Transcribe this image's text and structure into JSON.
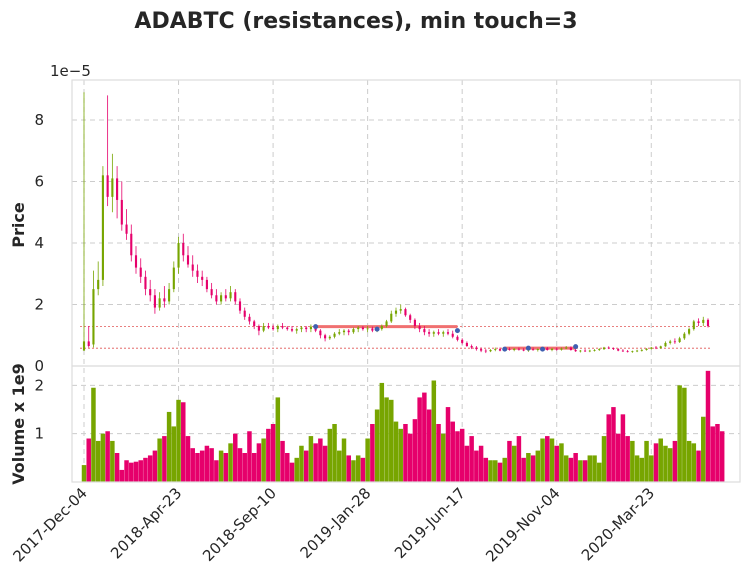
{
  "chart_data": {
    "type": "candlestick",
    "title": "ADABTC (resistances), min touch=3",
    "price_panel": {
      "ylabel": "Price",
      "offset_label": "1e−5",
      "ylim": [
        0,
        9.3
      ],
      "yticks": [
        0,
        2,
        4,
        6,
        8
      ]
    },
    "volume_panel": {
      "ylabel": "Volume x 1e9",
      "ylim": [
        0,
        2.4
      ],
      "yticks": [
        1,
        2
      ]
    },
    "x_tick_labels": [
      "2017-Dec-04",
      "2018-Apr-23",
      "2018-Sep-10",
      "2019-Jan-28",
      "2019-Jun-17",
      "2019-Nov-04",
      "2020-Mar-23"
    ],
    "x_tick_positions": [
      0,
      20,
      40,
      60,
      80,
      100,
      120
    ],
    "colors": {
      "up": "#77a500",
      "down": "#e6006b",
      "resistance": "#f07070",
      "touch": "#3f5fb0"
    },
    "resistance_levels": [
      {
        "value": 1.28,
        "segment": [
          49,
          79
        ]
      },
      {
        "value": 0.58,
        "segment": [
          89,
          104
        ]
      }
    ],
    "touch_points": [
      {
        "x": 49,
        "y": 1.28
      },
      {
        "x": 62,
        "y": 1.2
      },
      {
        "x": 79,
        "y": 1.15
      },
      {
        "x": 89,
        "y": 0.55
      },
      {
        "x": 94,
        "y": 0.58
      },
      {
        "x": 97,
        "y": 0.55
      },
      {
        "x": 104,
        "y": 0.63
      }
    ],
    "candles": [
      [
        0.5,
        8.9,
        0.5,
        0.8
      ],
      [
        0.8,
        1.3,
        0.6,
        0.65
      ],
      [
        0.7,
        3.1,
        0.6,
        2.5
      ],
      [
        2.5,
        3.4,
        2.3,
        2.8
      ],
      [
        2.8,
        6.5,
        2.6,
        6.2
      ],
      [
        6.2,
        8.8,
        5.2,
        5.5
      ],
      [
        5.5,
        6.9,
        5.0,
        6.1
      ],
      [
        6.1,
        6.5,
        4.8,
        5.4
      ],
      [
        5.4,
        6.0,
        4.4,
        4.6
      ],
      [
        4.6,
        5.1,
        4.1,
        4.3
      ],
      [
        4.3,
        4.6,
        3.4,
        3.6
      ],
      [
        3.6,
        3.9,
        3.0,
        3.2
      ],
      [
        3.2,
        3.5,
        2.7,
        2.9
      ],
      [
        2.9,
        3.1,
        2.3,
        2.5
      ],
      [
        2.5,
        2.8,
        2.1,
        2.3
      ],
      [
        2.3,
        2.5,
        1.7,
        1.9
      ],
      [
        1.9,
        2.4,
        1.8,
        2.2
      ],
      [
        2.2,
        2.6,
        1.9,
        2.1
      ],
      [
        2.1,
        2.7,
        2.0,
        2.5
      ],
      [
        2.5,
        3.4,
        2.4,
        3.2
      ],
      [
        3.2,
        4.2,
        3.0,
        4.0
      ],
      [
        4.0,
        4.3,
        3.4,
        3.6
      ],
      [
        3.6,
        3.9,
        3.2,
        3.3
      ],
      [
        3.3,
        3.6,
        2.9,
        3.1
      ],
      [
        3.1,
        3.3,
        2.7,
        2.9
      ],
      [
        2.9,
        3.1,
        2.6,
        2.8
      ],
      [
        2.8,
        2.9,
        2.4,
        2.5
      ],
      [
        2.5,
        2.7,
        2.2,
        2.3
      ],
      [
        2.3,
        2.5,
        2.0,
        2.1
      ],
      [
        2.1,
        2.4,
        2.0,
        2.3
      ],
      [
        2.3,
        2.5,
        2.1,
        2.2
      ],
      [
        2.2,
        2.6,
        2.1,
        2.4
      ],
      [
        2.4,
        2.5,
        2.0,
        2.1
      ],
      [
        2.1,
        2.2,
        1.7,
        1.8
      ],
      [
        1.8,
        1.9,
        1.5,
        1.6
      ],
      [
        1.6,
        1.7,
        1.35,
        1.45
      ],
      [
        1.45,
        1.5,
        1.2,
        1.3
      ],
      [
        1.3,
        1.35,
        1.0,
        1.15
      ],
      [
        1.15,
        1.4,
        1.1,
        1.3
      ],
      [
        1.3,
        1.4,
        1.2,
        1.25
      ],
      [
        1.25,
        1.35,
        1.15,
        1.2
      ],
      [
        1.2,
        1.35,
        1.1,
        1.3
      ],
      [
        1.3,
        1.4,
        1.2,
        1.25
      ],
      [
        1.25,
        1.3,
        1.15,
        1.2
      ],
      [
        1.2,
        1.3,
        1.1,
        1.15
      ],
      [
        1.15,
        1.25,
        1.05,
        1.2
      ],
      [
        1.2,
        1.3,
        1.1,
        1.25
      ],
      [
        1.25,
        1.3,
        1.1,
        1.2
      ],
      [
        1.2,
        1.35,
        1.1,
        1.28
      ],
      [
        1.28,
        1.35,
        1.1,
        1.15
      ],
      [
        1.15,
        1.2,
        0.9,
        1.0
      ],
      [
        1.0,
        1.05,
        0.8,
        0.9
      ],
      [
        0.9,
        1.0,
        0.85,
        0.95
      ],
      [
        0.95,
        1.1,
        0.9,
        1.05
      ],
      [
        1.05,
        1.2,
        1.0,
        1.1
      ],
      [
        1.1,
        1.2,
        1.0,
        1.15
      ],
      [
        1.15,
        1.2,
        1.0,
        1.1
      ],
      [
        1.1,
        1.25,
        1.05,
        1.2
      ],
      [
        1.2,
        1.3,
        1.1,
        1.25
      ],
      [
        1.25,
        1.3,
        1.15,
        1.2
      ],
      [
        1.2,
        1.3,
        1.1,
        1.22
      ],
      [
        1.22,
        1.28,
        1.1,
        1.15
      ],
      [
        1.15,
        1.25,
        1.1,
        1.2
      ],
      [
        1.2,
        1.35,
        1.15,
        1.3
      ],
      [
        1.3,
        1.5,
        1.25,
        1.45
      ],
      [
        1.45,
        1.8,
        1.4,
        1.7
      ],
      [
        1.7,
        1.9,
        1.6,
        1.8
      ],
      [
        1.8,
        2.0,
        1.7,
        1.85
      ],
      [
        1.85,
        1.9,
        1.6,
        1.65
      ],
      [
        1.65,
        1.7,
        1.4,
        1.5
      ],
      [
        1.5,
        1.55,
        1.2,
        1.3
      ],
      [
        1.3,
        1.4,
        1.1,
        1.2
      ],
      [
        1.2,
        1.3,
        1.0,
        1.1
      ],
      [
        1.1,
        1.2,
        0.95,
        1.05
      ],
      [
        1.05,
        1.15,
        0.95,
        1.1
      ],
      [
        1.1,
        1.2,
        1.0,
        1.05
      ],
      [
        1.05,
        1.15,
        0.95,
        1.1
      ],
      [
        1.1,
        1.2,
        1.0,
        1.05
      ],
      [
        1.05,
        1.15,
        0.9,
        0.95
      ],
      [
        0.95,
        1.0,
        0.8,
        0.85
      ],
      [
        0.85,
        0.9,
        0.7,
        0.75
      ],
      [
        0.75,
        0.8,
        0.62,
        0.65
      ],
      [
        0.65,
        0.7,
        0.55,
        0.6
      ],
      [
        0.6,
        0.65,
        0.5,
        0.55
      ],
      [
        0.55,
        0.6,
        0.45,
        0.5
      ],
      [
        0.5,
        0.55,
        0.42,
        0.48
      ],
      [
        0.48,
        0.55,
        0.45,
        0.52
      ],
      [
        0.52,
        0.6,
        0.48,
        0.55
      ],
      [
        0.55,
        0.6,
        0.48,
        0.5
      ],
      [
        0.5,
        0.58,
        0.47,
        0.55
      ],
      [
        0.55,
        0.6,
        0.5,
        0.52
      ],
      [
        0.52,
        0.58,
        0.48,
        0.56
      ],
      [
        0.56,
        0.6,
        0.5,
        0.53
      ],
      [
        0.53,
        0.58,
        0.48,
        0.5
      ],
      [
        0.5,
        0.56,
        0.46,
        0.54
      ],
      [
        0.54,
        0.6,
        0.5,
        0.52
      ],
      [
        0.52,
        0.57,
        0.47,
        0.55
      ],
      [
        0.55,
        0.62,
        0.52,
        0.58
      ],
      [
        0.58,
        0.62,
        0.5,
        0.52
      ],
      [
        0.52,
        0.58,
        0.48,
        0.56
      ],
      [
        0.56,
        0.6,
        0.5,
        0.53
      ],
      [
        0.53,
        0.6,
        0.5,
        0.57
      ],
      [
        0.57,
        0.65,
        0.55,
        0.6
      ],
      [
        0.6,
        0.64,
        0.5,
        0.52
      ],
      [
        0.52,
        0.56,
        0.46,
        0.48
      ],
      [
        0.48,
        0.52,
        0.44,
        0.5
      ],
      [
        0.5,
        0.55,
        0.46,
        0.48
      ],
      [
        0.48,
        0.53,
        0.45,
        0.5
      ],
      [
        0.5,
        0.55,
        0.47,
        0.52
      ],
      [
        0.52,
        0.58,
        0.49,
        0.55
      ],
      [
        0.55,
        0.62,
        0.52,
        0.6
      ],
      [
        0.6,
        0.64,
        0.55,
        0.58
      ],
      [
        0.58,
        0.6,
        0.52,
        0.55
      ],
      [
        0.55,
        0.58,
        0.48,
        0.5
      ],
      [
        0.5,
        0.55,
        0.46,
        0.48
      ],
      [
        0.48,
        0.52,
        0.44,
        0.46
      ],
      [
        0.46,
        0.5,
        0.43,
        0.48
      ],
      [
        0.48,
        0.53,
        0.45,
        0.5
      ],
      [
        0.5,
        0.55,
        0.47,
        0.52
      ],
      [
        0.52,
        0.58,
        0.5,
        0.56
      ],
      [
        0.56,
        0.62,
        0.53,
        0.6
      ],
      [
        0.6,
        0.65,
        0.55,
        0.58
      ],
      [
        0.58,
        0.66,
        0.56,
        0.64
      ],
      [
        0.64,
        0.8,
        0.62,
        0.75
      ],
      [
        0.75,
        0.85,
        0.7,
        0.8
      ],
      [
        0.8,
        0.9,
        0.72,
        0.78
      ],
      [
        0.78,
        0.95,
        0.75,
        0.9
      ],
      [
        0.9,
        1.1,
        0.85,
        1.05
      ],
      [
        1.05,
        1.25,
        1.0,
        1.2
      ],
      [
        1.2,
        1.5,
        1.15,
        1.45
      ],
      [
        1.45,
        1.55,
        1.3,
        1.4
      ],
      [
        1.4,
        1.6,
        1.3,
        1.5
      ],
      [
        1.5,
        1.55,
        1.25,
        1.3
      ]
    ],
    "volumes": [
      0.35,
      0.9,
      1.95,
      0.85,
      1.0,
      1.05,
      0.85,
      0.6,
      0.25,
      0.45,
      0.4,
      0.42,
      0.45,
      0.5,
      0.55,
      0.65,
      0.9,
      0.95,
      1.45,
      1.15,
      1.7,
      1.65,
      0.95,
      0.7,
      0.6,
      0.65,
      0.75,
      0.7,
      0.45,
      0.65,
      0.6,
      0.8,
      1.0,
      0.7,
      0.6,
      1.05,
      0.6,
      0.8,
      0.9,
      1.1,
      1.2,
      1.75,
      0.85,
      0.6,
      0.4,
      0.5,
      0.75,
      0.65,
      0.95,
      0.8,
      0.9,
      0.75,
      1.1,
      1.2,
      0.65,
      0.9,
      0.55,
      0.45,
      0.55,
      0.5,
      0.9,
      1.2,
      1.5,
      2.05,
      1.75,
      1.7,
      1.25,
      1.1,
      1.2,
      1.0,
      1.3,
      1.75,
      1.85,
      1.5,
      2.1,
      1.2,
      1.0,
      1.55,
      1.25,
      1.05,
      1.1,
      0.75,
      0.95,
      0.65,
      0.75,
      0.5,
      0.45,
      0.45,
      0.4,
      0.5,
      0.85,
      0.75,
      0.95,
      0.5,
      0.6,
      0.55,
      0.65,
      0.9,
      0.95,
      0.9,
      0.75,
      0.8,
      0.55,
      0.5,
      0.6,
      0.45,
      0.45,
      0.55,
      0.55,
      0.4,
      0.95,
      1.4,
      1.55,
      1.0,
      1.4,
      0.95,
      0.85,
      0.55,
      0.5,
      0.85,
      0.55,
      0.8,
      0.9,
      0.75,
      0.7,
      0.85,
      2.0,
      1.95,
      0.85,
      0.8,
      0.65,
      1.35,
      2.3,
      1.15,
      1.2,
      1.05
    ]
  }
}
